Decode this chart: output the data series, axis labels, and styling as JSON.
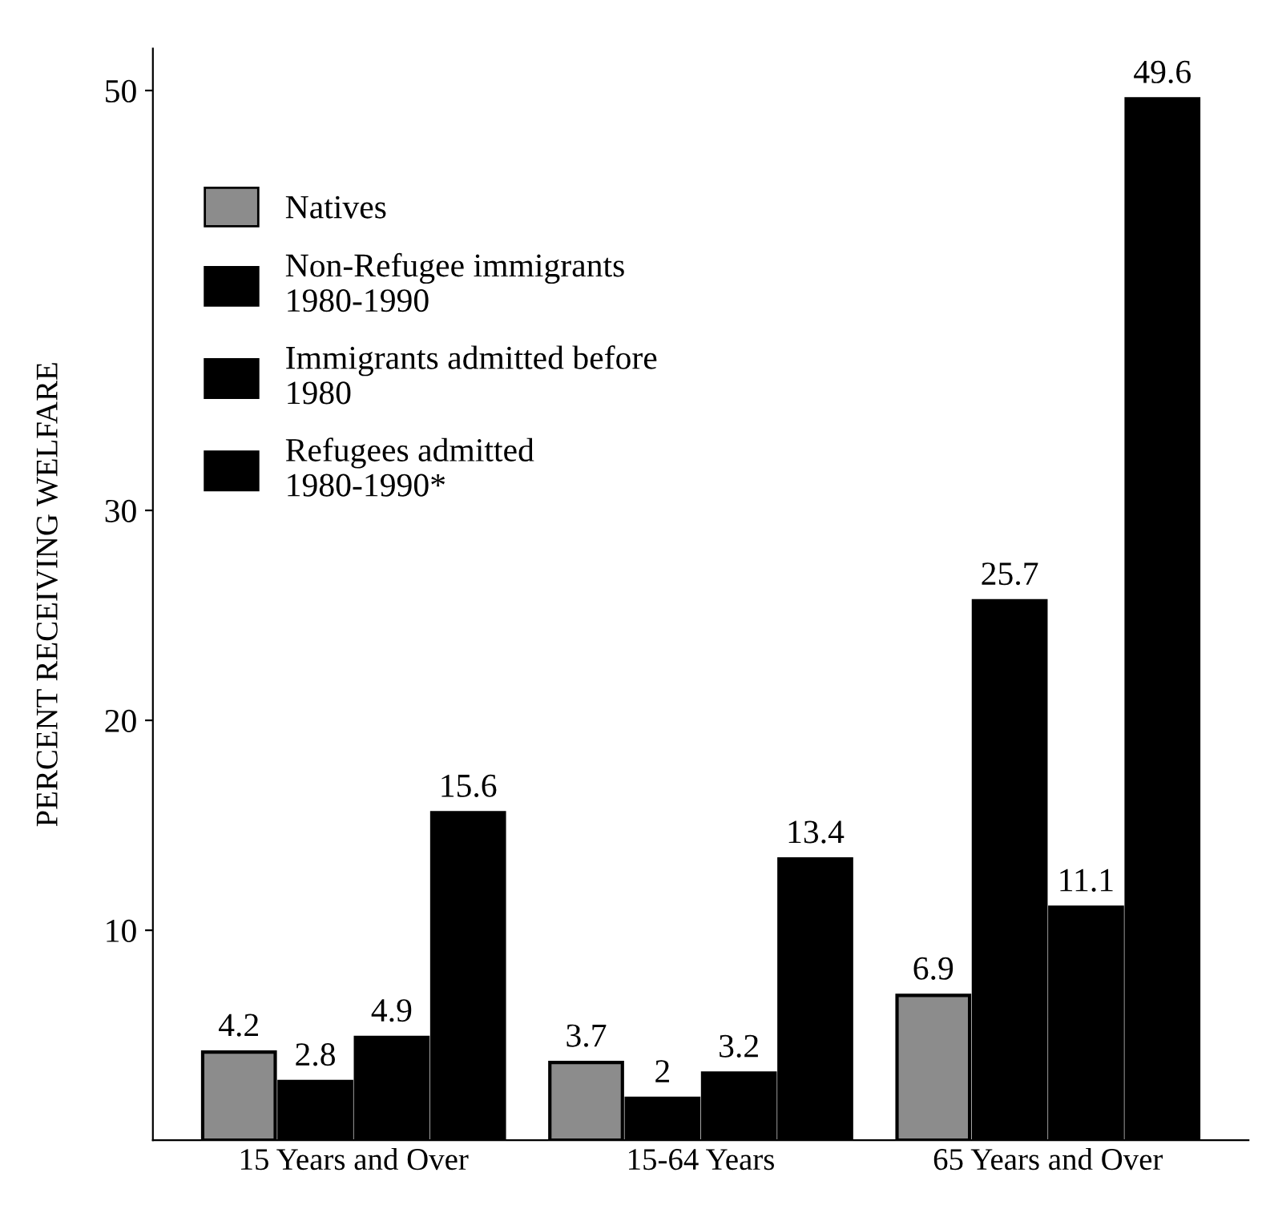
{
  "chart_data": {
    "type": "bar",
    "ylabel": "PERCENT RECEIVING WELFARE",
    "categories": [
      "15 Years and Over",
      "15-64 Years",
      "65 Years and Over"
    ],
    "series": [
      {
        "name": "Natives",
        "color": "#8c8c8c",
        "values": [
          4.2,
          3.7,
          6.9
        ]
      },
      {
        "name": "Non-Refugee immigrants\n1980-1990",
        "color": "#000000",
        "values": [
          2.8,
          2,
          25.7
        ]
      },
      {
        "name": "Immigrants admitted before\n1980",
        "color": "#000000",
        "values": [
          4.9,
          3.2,
          11.1
        ]
      },
      {
        "name": "Refugees admitted\n1980-1990*",
        "color": "#000000",
        "values": [
          15.6,
          13.4,
          49.6
        ]
      }
    ],
    "ylim": [
      0,
      52
    ],
    "yticks": [
      10,
      20,
      30,
      50
    ],
    "data_labels": true,
    "legend": "top left",
    "grid": false
  }
}
